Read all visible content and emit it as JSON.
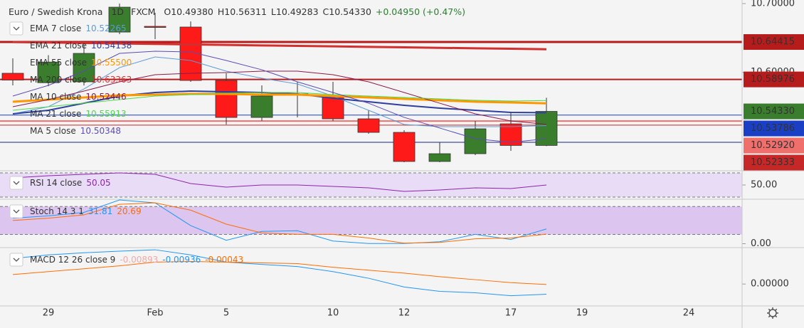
{
  "chart_data": {
    "type": "candlestick",
    "header": {
      "symbol": "Euro / Swedish Krona",
      "interval": "1D",
      "exchange": "FXCM",
      "ohlc": [
        "O10.49380",
        "H10.56311",
        "L10.49283",
        "C10.54330"
      ],
      "change": "+0.04950 (+0.47%)"
    },
    "categories": [
      null,
      "29",
      null,
      null,
      "Feb",
      null,
      "5",
      null,
      null,
      "10",
      null,
      "12",
      null,
      null,
      "17",
      null,
      "19",
      null,
      null,
      "24",
      null
    ],
    "candles": {
      "open": [
        10.5987,
        10.585,
        10.5863,
        10.6586,
        10.6669,
        10.6659,
        10.5883,
        10.5345,
        10.5677,
        10.5656,
        10.5325,
        10.5128,
        10.4705,
        10.4818,
        10.5252,
        10.4938,
        null,
        null,
        null,
        null,
        null
      ],
      "high": [
        10.6204,
        10.625,
        10.641,
        10.7,
        10.6866,
        10.6741,
        10.5987,
        10.5811,
        10.5863,
        10.5863,
        10.5449,
        10.5159,
        10.4984,
        10.5294,
        10.5428,
        10.56311,
        null,
        null,
        null,
        null,
        null
      ],
      "low": [
        10.5811,
        10.58,
        10.581,
        10.6555,
        10.6483,
        10.5863,
        10.5242,
        10.5294,
        10.5345,
        10.5294,
        10.5108,
        10.4694,
        10.4694,
        10.4798,
        10.486,
        10.49283,
        null,
        null,
        null,
        null,
        null
      ],
      "close": [
        10.5888,
        10.615,
        10.6276,
        10.6948,
        10.6659,
        10.5883,
        10.5345,
        10.5656,
        10.5687,
        10.5325,
        10.5128,
        10.4705,
        10.4818,
        10.518,
        10.4938,
        10.5433,
        null,
        null,
        null,
        null,
        null
      ],
      "up_color": "#3a7d2c",
      "down_color": "#ff1a1a",
      "last_label": "10.54330"
    },
    "ylim": [
      10.457,
      10.7052
    ],
    "yticks": [
      {
        "value": 10.7,
        "label": "10.70000"
      },
      {
        "value": 10.6,
        "label": "10.60000"
      }
    ],
    "overlays": [
      {
        "name": "EMA 7 close",
        "legend_value": "10.52265",
        "color": "#5b9bd5",
        "width": 1,
        "values": [
          10.5397,
          10.5501,
          10.5759,
          10.6069,
          10.6224,
          10.6173,
          10.6018,
          10.5914,
          10.5832,
          10.5656,
          10.5449,
          10.5242,
          10.5211,
          10.5211,
          10.5211,
          10.52265,
          null,
          null,
          null,
          null,
          null
        ]
      },
      {
        "name": "EMA 21 close",
        "legend_value": "10.54138",
        "color": "#2f3f9e",
        "width": 2,
        "values": [
          10.5397,
          10.5449,
          10.5552,
          10.5656,
          10.5708,
          10.5728,
          10.5718,
          10.5708,
          10.5687,
          10.5625,
          10.5573,
          10.5521,
          10.548,
          10.5449,
          10.5418,
          10.54138,
          null,
          null,
          null,
          null,
          null
        ]
      },
      {
        "name": "EMA 55 close",
        "legend_value": "10.55500",
        "color": "#ff9800",
        "width": 3,
        "values": [
          10.5573,
          10.5604,
          10.5635,
          10.5666,
          10.5676,
          10.5687,
          10.5687,
          10.5676,
          10.5676,
          10.5656,
          10.5635,
          10.5614,
          10.5594,
          10.5573,
          10.5563,
          10.555,
          null,
          null,
          null,
          null,
          null
        ]
      },
      {
        "name": "MA 200 close",
        "legend_value": "10.63363",
        "color": "#d32f2f",
        "width": 3,
        "values": [
          10.6441,
          10.6434,
          10.6427,
          10.642,
          10.6413,
          10.6406,
          10.6399,
          10.6392,
          10.6385,
          10.6378,
          10.6371,
          10.6364,
          10.6357,
          10.635,
          10.6343,
          10.63363,
          null,
          null,
          null,
          null,
          null
        ]
      },
      {
        "name": "MA 10 close",
        "legend_value": "10.52446",
        "color": "#8b1a4a",
        "width": 1,
        "values": [
          10.5501,
          10.5604,
          10.5728,
          10.5863,
          10.5966,
          10.5987,
          10.5997,
          10.6018,
          10.6018,
          10.5966,
          10.5863,
          10.5708,
          10.5552,
          10.5397,
          10.5294,
          10.52446,
          null,
          null,
          null,
          null,
          null
        ]
      },
      {
        "name": "MA 21 close",
        "legend_value": "10.55913",
        "color": "#4cd94c",
        "width": 1,
        "values": [
          10.5449,
          10.5501,
          10.5552,
          10.5604,
          10.5656,
          10.5676,
          10.5697,
          10.5708,
          10.5708,
          10.5676,
          10.5656,
          10.5635,
          10.5614,
          10.5594,
          10.5583,
          10.55913,
          null,
          null,
          null,
          null,
          null
        ]
      },
      {
        "name": "MA 5 close",
        "legend_value": "10.50348",
        "color": "#5c4db1",
        "width": 1,
        "values": [
          10.5656,
          10.5811,
          10.6018,
          10.6276,
          10.6307,
          10.6297,
          10.6173,
          10.6038,
          10.5863,
          10.5708,
          10.5552,
          10.5346,
          10.5191,
          10.5035,
          10.4984,
          10.50348,
          null,
          null,
          null,
          null,
          null
        ]
      }
    ],
    "price_lines": [
      {
        "value": 10.64415,
        "label": "10.64415",
        "color": "#b71c1c",
        "width": 3
      },
      {
        "value": 10.58976,
        "label": "10.58976",
        "color": "#b71c1c",
        "width": 2
      },
      {
        "value": 10.53786,
        "label": "10.53786",
        "color": "#1a3fc4",
        "width": 1
      },
      {
        "value": 10.5292,
        "label": "10.52920",
        "color": "#ef6f6c",
        "width": 2
      },
      {
        "value": 10.52333,
        "label": "10.52333",
        "color": "#c62828",
        "width": 1
      },
      {
        "value": 10.4984,
        "color": "#1a237e",
        "width": 1
      }
    ],
    "panes": [
      {
        "type": "line",
        "title": "RSI 14 close",
        "ylim": [
          26.5,
          73.5
        ],
        "yticks": [
          {
            "value": 50,
            "label": "50.00"
          }
        ],
        "band": [
          30,
          70
        ],
        "band_color": "#e8dcf6",
        "legend_values": [
          {
            "text": "50.05",
            "color": "#8e24aa"
          }
        ],
        "series": [
          {
            "color": "#8e24aa",
            "values": [
              61.8,
              65.3,
              67.6,
              70.0,
              67.6,
              52.4,
              46.5,
              50.0,
              50.0,
              47.6,
              45.3,
              39.4,
              41.8,
              45.3,
              44.1,
              50.05,
              null,
              null,
              null,
              null,
              null
            ]
          }
        ]
      },
      {
        "type": "line",
        "title": "Stoch 14 3 1",
        "ylim": [
          -8.4,
          95.8
        ],
        "yticks": [
          {
            "value": 0,
            "label": "0.00"
          }
        ],
        "band": [
          20,
          80
        ],
        "band_color": "#dcc6f0",
        "legend_values": [
          {
            "text": "31.81",
            "color": "#2196f3"
          },
          {
            "text": "20.69",
            "color": "#ff6d00"
          }
        ],
        "series": [
          {
            "color": "#2196f3",
            "values": [
              55,
              60,
              67.5,
              94.3,
              88.0,
              39.0,
              7.4,
              26.4,
              28.0,
              5.8,
              0.5,
              0.5,
              4.3,
              20.1,
              9.0,
              31.81,
              null,
              null,
              null,
              null,
              null
            ]
          },
          {
            "color": "#ff6d00",
            "values": [
              50,
              55,
              62,
              84.8,
              88.0,
              72.2,
              42.2,
              23.2,
              20.1,
              20.1,
              12.2,
              1.1,
              2.7,
              10.6,
              12.2,
              20.69,
              null,
              null,
              null,
              null,
              null
            ]
          }
        ]
      },
      {
        "type": "line",
        "title": "MACD 12 26 close 9",
        "ylim": [
          -0.0201,
          0.0334
        ],
        "yticks": [
          {
            "value": 0,
            "label": "0.00000"
          }
        ],
        "legend_values": [
          {
            "text": "-0.00893",
            "color": "#f4a8a8"
          },
          {
            "text": "-0.00936",
            "color": "#2196f3"
          },
          {
            "text": "-0.00043",
            "color": "#ff6d00"
          }
        ],
        "series": [
          {
            "color": "#2196f3",
            "values": [
              0.0234,
              0.0267,
              0.0287,
              0.0301,
              0.0314,
              0.0267,
              0.0201,
              0.018,
              0.016,
              0.0114,
              0.0053,
              -0.0027,
              -0.0067,
              -0.008,
              -0.0107,
              -0.00936,
              null,
              null,
              null,
              null,
              null
            ]
          },
          {
            "color": "#ff6d00",
            "values": [
              0.0087,
              0.0114,
              0.014,
              0.0167,
              0.0201,
              0.0207,
              0.0201,
              0.0194,
              0.0187,
              0.0154,
              0.0127,
              0.01,
              0.0067,
              0.004,
              0.0013,
              -0.00043,
              null,
              null,
              null,
              null,
              null
            ]
          }
        ]
      }
    ]
  }
}
